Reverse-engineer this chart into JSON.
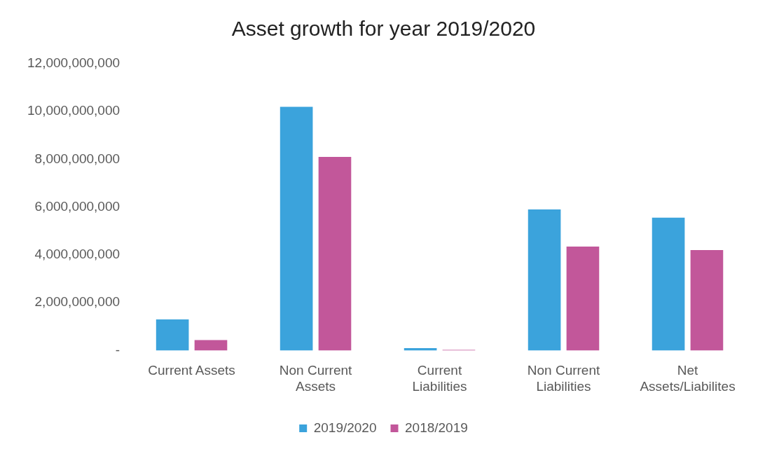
{
  "chart_data": {
    "type": "bar",
    "title": "Asset growth for year 2019/2020",
    "categories": [
      "Current Assets",
      "Non Current Assets",
      "Current Liabilities",
      "Non Current Liabilities",
      "Net Assets/Liabilites"
    ],
    "series": [
      {
        "name": "2019/2020",
        "color": "#3ba3dc",
        "values": [
          1300000000,
          10200000000,
          100000000,
          5900000000,
          5560000000
        ]
      },
      {
        "name": "2018/2019",
        "color": "#c2579a",
        "values": [
          440000000,
          8100000000,
          30000000,
          4350000000,
          4200000000
        ]
      }
    ],
    "ylim": [
      0,
      12000000000
    ],
    "yticks": [
      {
        "value": 0,
        "label": "-"
      },
      {
        "value": 2000000000,
        "label": "2,000,000,000"
      },
      {
        "value": 4000000000,
        "label": "4,000,000,000"
      },
      {
        "value": 6000000000,
        "label": "6,000,000,000"
      },
      {
        "value": 8000000000,
        "label": "8,000,000,000"
      },
      {
        "value": 10000000000,
        "label": "10,000,000,000"
      },
      {
        "value": 12000000000,
        "label": "12,000,000,000"
      }
    ],
    "grid": false,
    "legend": "bottom"
  }
}
